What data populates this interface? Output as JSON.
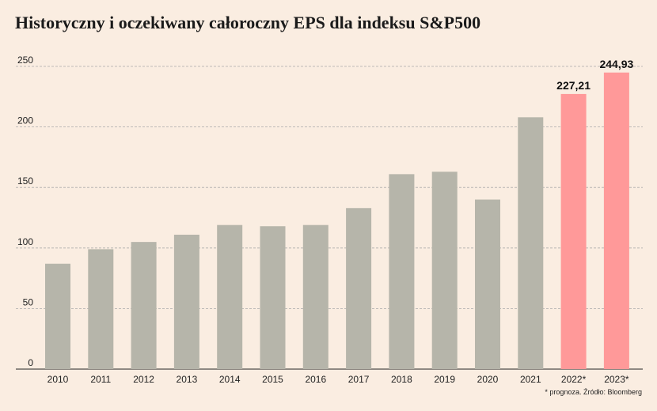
{
  "chart_data": {
    "type": "bar",
    "title": "Historyczny i oczekiwany całoroczny EPS dla indeksu S&P500",
    "categories": [
      "2010",
      "2011",
      "2012",
      "2013",
      "2014",
      "2015",
      "2016",
      "2017",
      "2018",
      "2019",
      "2020",
      "2021",
      "2022*",
      "2023*"
    ],
    "values": [
      87,
      99,
      105,
      111,
      119,
      118,
      119,
      133,
      161,
      163,
      140,
      208,
      227.21,
      244.93
    ],
    "data_labels": [
      "",
      "",
      "",
      "",
      "",
      "",
      "",
      "",
      "",
      "",
      "",
      "",
      "227,21",
      "244,93"
    ],
    "forecast": [
      false,
      false,
      false,
      false,
      false,
      false,
      false,
      false,
      false,
      false,
      false,
      false,
      true,
      true
    ],
    "ylim": [
      0,
      250
    ],
    "yticks": [
      0,
      50,
      100,
      150,
      200,
      250
    ],
    "grid": true,
    "colors": {
      "historical": "#b6b5aa",
      "forecast": "#ff9999",
      "grid": "#aaaaaa"
    },
    "footnote": "* prognoza. Źródło: Bloomberg"
  }
}
